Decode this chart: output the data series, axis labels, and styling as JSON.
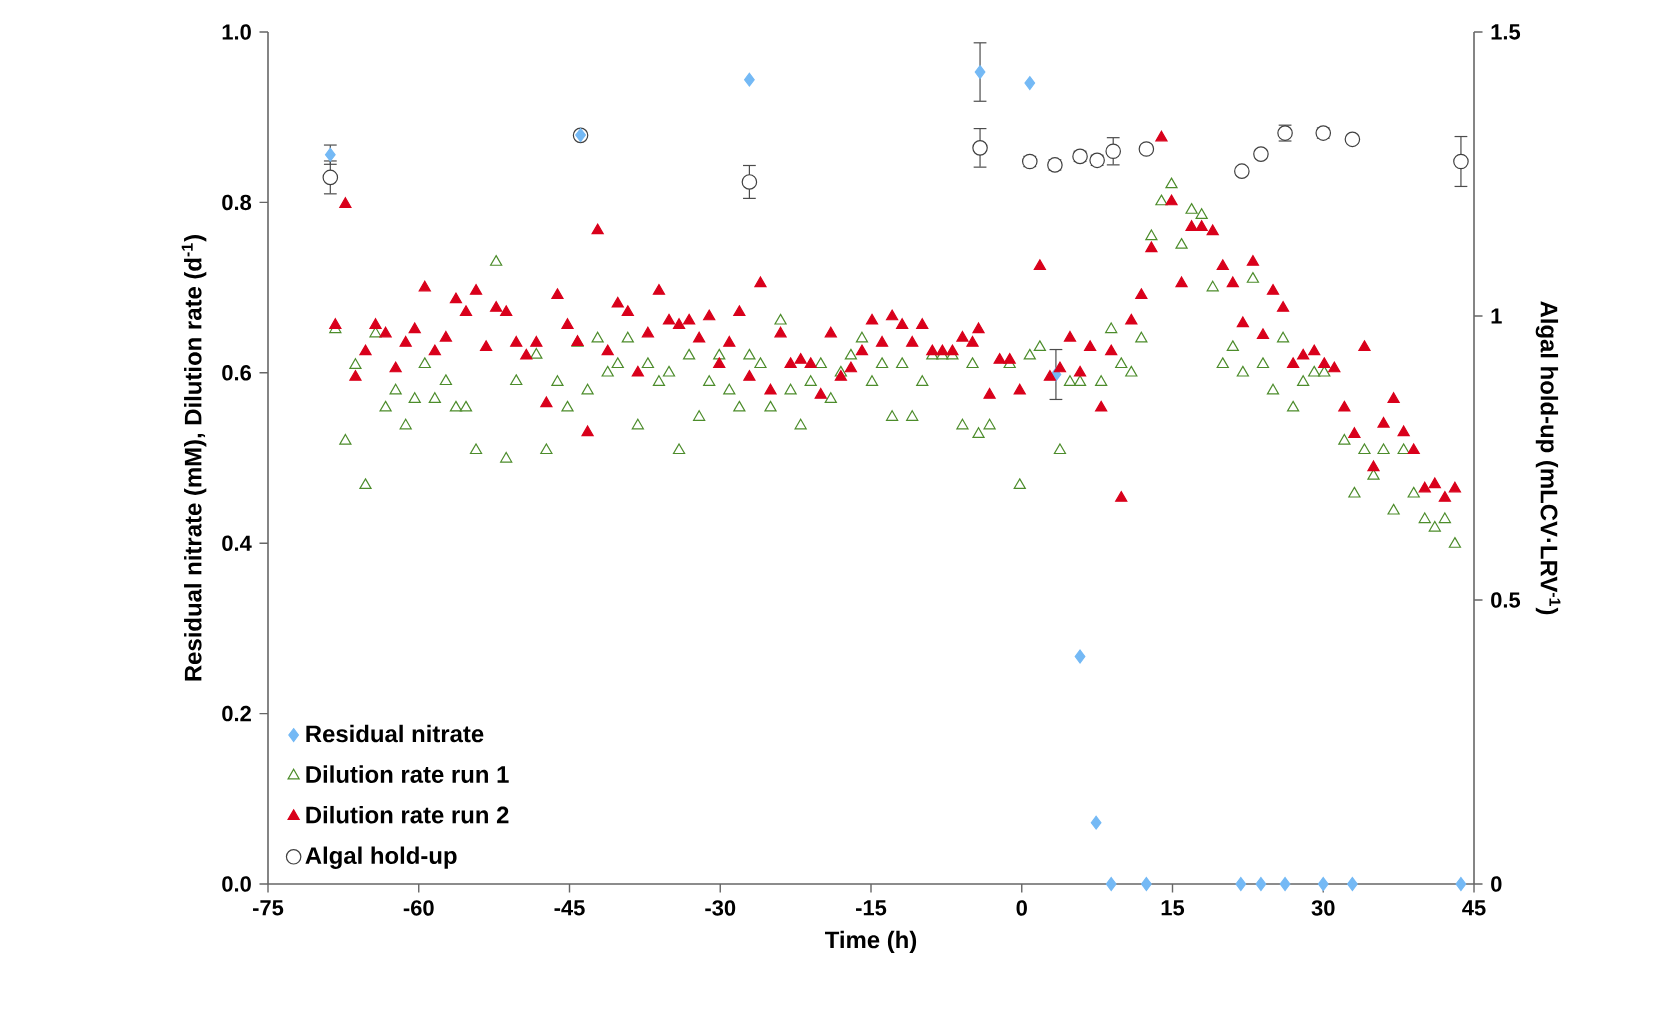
{
  "chart_data": {
    "type": "scatter",
    "xlabel": "Time (h)",
    "ylabel": "Residual nitrate (mM), Dilution rate (d$^{-1}$)",
    "y2label": "Algal hold-up (mLCV·LRV$^{-1}$)",
    "xlim": [
      -75,
      45
    ],
    "xticks": [
      -75,
      -60,
      -45,
      -30,
      -15,
      0,
      15,
      30,
      45
    ],
    "ylim": [
      0,
      1
    ],
    "yticks": [
      {
        "value": 0,
        "label": "0.0"
      },
      {
        "value": 0.2,
        "label": "0.2"
      },
      {
        "value": 0.4,
        "label": "0.4"
      },
      {
        "value": 0.6,
        "label": "0.6"
      },
      {
        "value": 0.8,
        "label": "0.8"
      },
      {
        "value": 1,
        "label": "1.0"
      }
    ],
    "y2lim": [
      0,
      1.5
    ],
    "y2ticks": [
      0,
      0.5,
      1,
      1.5
    ],
    "legend": "bottom left",
    "series": [
      {
        "name": "Residual nitrate",
        "color": "#74b9f5",
        "marker": "diamond",
        "x": [
          -68.8,
          -43.9,
          -27.1,
          -4.15,
          0.8,
          3.4,
          5.8,
          7.4,
          8.9,
          12.4,
          21.8,
          23.8,
          26.2,
          30.0,
          32.9,
          43.7
        ],
        "values": [
          0.856,
          0.879,
          0.944,
          0.953,
          0.94,
          0.598,
          0.267,
          0.072,
          0,
          0,
          0,
          0,
          0,
          0,
          0,
          0
        ],
        "errors": [
          0.012,
          null,
          null,
          0.035,
          null,
          0.03,
          null,
          null,
          null,
          null,
          null,
          null,
          null,
          null,
          null,
          null
        ]
      },
      {
        "name": "Dilution rate run 1",
        "color": "#4c8c2b",
        "marker": "triangle",
        "x": [
          -68.3,
          -67.3,
          -66.3,
          -65.3,
          -64.3,
          -63.3,
          -62.3,
          -61.3,
          -60.4,
          -59.4,
          -58.4,
          -57.3,
          -56.3,
          -55.3,
          -54.3,
          -52.3,
          -51.3,
          -50.3,
          -48.3,
          -47.3,
          -46.2,
          -45.2,
          -44.2,
          -43.2,
          -42.2,
          -41.2,
          -40.2,
          -39.2,
          -38.2,
          -37.2,
          -36.1,
          -35.1,
          -34.1,
          -33.1,
          -32.1,
          -31.1,
          -30.1,
          -29.1,
          -28.1,
          -27.1,
          -26.0,
          -25.0,
          -24.0,
          -23.0,
          -22.0,
          -21.0,
          -20.0,
          -19.0,
          -18.0,
          -17.0,
          -15.9,
          -14.9,
          -13.9,
          -12.9,
          -11.9,
          -10.9,
          -9.9,
          -8.9,
          -7.9,
          -6.9,
          -5.9,
          -4.9,
          -4.3,
          -3.2,
          -1.2,
          -0.2,
          0.8,
          1.8,
          3.8,
          4.8,
          5.8,
          7.9,
          8.9,
          9.9,
          10.9,
          11.9,
          12.9,
          13.9,
          14.9,
          15.9,
          16.9,
          17.9,
          19.0,
          20.0,
          21.0,
          22.0,
          23.0,
          24.0,
          25.0,
          26.0,
          27.0,
          28.0,
          29.1,
          30.1,
          32.1,
          33.1,
          34.1,
          35.0,
          36.0,
          37.0,
          38.0,
          39.0,
          40.1,
          41.1,
          42.1,
          43.1
        ],
        "values": [
          0.651,
          0.52,
          0.609,
          0.468,
          0.646,
          0.559,
          0.579,
          0.538,
          0.569,
          0.61,
          0.569,
          0.59,
          0.559,
          0.559,
          0.509,
          0.73,
          0.499,
          0.59,
          0.621,
          0.509,
          0.589,
          0.559,
          0.635,
          0.579,
          0.64,
          0.6,
          0.61,
          0.64,
          0.538,
          0.61,
          0.589,
          0.6,
          0.509,
          0.62,
          0.548,
          0.589,
          0.62,
          0.579,
          0.559,
          0.62,
          0.61,
          0.559,
          0.661,
          0.579,
          0.538,
          0.589,
          0.61,
          0.569,
          0.6,
          0.62,
          0.64,
          0.589,
          0.61,
          0.548,
          0.61,
          0.548,
          0.589,
          0.62,
          0.62,
          0.62,
          0.538,
          0.61,
          0.528,
          0.538,
          0.61,
          0.468,
          0.62,
          0.63,
          0.509,
          0.589,
          0.589,
          0.589,
          0.651,
          0.61,
          0.6,
          0.64,
          0.76,
          0.801,
          0.821,
          0.75,
          0.791,
          0.785,
          0.7,
          0.61,
          0.63,
          0.6,
          0.71,
          0.61,
          0.579,
          0.64,
          0.559,
          0.589,
          0.6,
          0.6,
          0.52,
          0.458,
          0.509,
          0.479,
          0.509,
          0.438,
          0.509,
          0.458,
          0.428,
          0.418,
          0.428,
          0.399
        ]
      },
      {
        "name": "Dilution rate run 2",
        "color": "#d9001b",
        "marker": "triangle",
        "x": [
          -68.3,
          -67.3,
          -66.3,
          -65.3,
          -64.3,
          -63.3,
          -62.3,
          -61.3,
          -60.4,
          -59.4,
          -58.4,
          -57.3,
          -56.3,
          -55.3,
          -54.3,
          -53.3,
          -52.3,
          -51.3,
          -50.3,
          -49.3,
          -48.3,
          -47.3,
          -46.2,
          -45.2,
          -44.2,
          -43.2,
          -42.2,
          -41.2,
          -40.2,
          -39.2,
          -38.2,
          -37.2,
          -36.1,
          -35.1,
          -34.1,
          -33.1,
          -32.1,
          -31.1,
          -30.1,
          -29.1,
          -28.1,
          -27.1,
          -26.0,
          -25.0,
          -24.0,
          -23.0,
          -22.0,
          -21.0,
          -20.0,
          -19.0,
          -18.0,
          -17.0,
          -15.9,
          -14.9,
          -13.9,
          -12.9,
          -11.9,
          -10.9,
          -9.9,
          -8.9,
          -7.9,
          -6.9,
          -5.9,
          -4.9,
          -4.3,
          -3.2,
          -2.2,
          -1.2,
          -0.2,
          1.8,
          2.8,
          3.8,
          4.8,
          5.8,
          6.8,
          7.9,
          8.9,
          9.9,
          10.9,
          11.9,
          12.9,
          13.9,
          14.9,
          15.9,
          16.9,
          17.9,
          19.0,
          20.0,
          21.0,
          22.0,
          23.0,
          24.0,
          25.0,
          26.0,
          27.0,
          28.0,
          29.1,
          30.1,
          31.1,
          32.1,
          33.1,
          34.1,
          35.0,
          36.0,
          37.0,
          38.0,
          39.0,
          40.1,
          41.1,
          42.1,
          43.1
        ],
        "values": [
          0.656,
          0.798,
          0.595,
          0.625,
          0.656,
          0.646,
          0.605,
          0.635,
          0.651,
          0.7,
          0.625,
          0.641,
          0.686,
          0.671,
          0.696,
          0.63,
          0.676,
          0.671,
          0.635,
          0.62,
          0.635,
          0.564,
          0.691,
          0.656,
          0.636,
          0.53,
          0.767,
          0.625,
          0.681,
          0.671,
          0.6,
          0.646,
          0.696,
          0.661,
          0.656,
          0.661,
          0.64,
          0.666,
          0.61,
          0.635,
          0.671,
          0.595,
          0.705,
          0.579,
          0.646,
          0.61,
          0.615,
          0.61,
          0.574,
          0.646,
          0.595,
          0.605,
          0.625,
          0.661,
          0.635,
          0.666,
          0.656,
          0.635,
          0.656,
          0.625,
          0.625,
          0.625,
          0.641,
          0.635,
          0.651,
          0.574,
          0.615,
          0.615,
          0.579,
          0.725,
          0.595,
          0.605,
          0.641,
          0.6,
          0.63,
          0.559,
          0.625,
          0.453,
          0.661,
          0.691,
          0.746,
          0.876,
          0.801,
          0.705,
          0.771,
          0.771,
          0.766,
          0.725,
          0.705,
          0.658,
          0.73,
          0.644,
          0.696,
          0.676,
          0.61,
          0.62,
          0.625,
          0.61,
          0.605,
          0.559,
          0.528,
          0.63,
          0.489,
          0.54,
          0.569,
          0.53,
          0.509,
          0.464,
          0.469,
          0.453,
          0.464
        ]
      },
      {
        "name": "Algal hold-up",
        "color": "#404040",
        "marker": "circle",
        "axis": "y2",
        "x": [
          -68.8,
          -43.9,
          -27.1,
          -4.15,
          0.8,
          3.3,
          5.8,
          7.5,
          9.1,
          12.4,
          21.9,
          23.8,
          26.2,
          30.0,
          32.9,
          43.7
        ],
        "values": [
          1.244,
          1.318,
          1.236,
          1.296,
          1.272,
          1.266,
          1.281,
          1.274,
          1.29,
          1.294,
          1.255,
          1.285,
          1.322,
          1.322,
          1.311,
          1.272
        ],
        "errors": [
          0.03,
          0.008,
          0.03,
          0.035,
          0.01,
          0.01,
          0.01,
          0.01,
          0.025,
          0.008,
          0.008,
          0.008,
          0.015,
          0.01,
          0.008,
          0.045
        ]
      }
    ]
  }
}
